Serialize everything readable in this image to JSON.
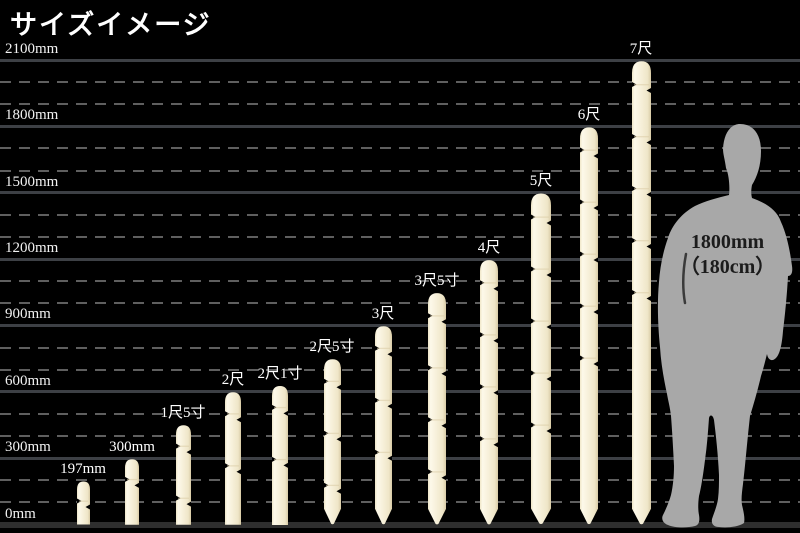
{
  "title": "サイズイメージ",
  "colors": {
    "background": "#000000",
    "grid_solid": "#3d4045",
    "grid_dashed": "#5f5f5f",
    "baseline": "#2e2e2e",
    "text_white": "#ffffff",
    "stake_light": "#fdf9ea",
    "stake_mid": "#f6efd8",
    "stake_dark": "#d9cba6",
    "stake_edge": "#efe6c8",
    "stake_band": "#d8caa4",
    "figure_gray": "#a8a8a8",
    "figure_text": "#1c1c1c"
  },
  "y_axis": {
    "unit": "mm",
    "ticks": [
      {
        "mm": 0,
        "label": "0mm"
      },
      {
        "mm": 300,
        "label": "300mm"
      },
      {
        "mm": 600,
        "label": "600mm"
      },
      {
        "mm": 900,
        "label": "900mm"
      },
      {
        "mm": 1200,
        "label": "1200mm"
      },
      {
        "mm": 1500,
        "label": "1500mm"
      },
      {
        "mm": 1800,
        "label": "1800mm"
      },
      {
        "mm": 2100,
        "label": "2100mm"
      }
    ],
    "minor_step_mm": 100
  },
  "stakes": [
    {
      "label": "197mm",
      "mm": 197,
      "pointed": false
    },
    {
      "label": "300mm",
      "mm": 300,
      "pointed": false
    },
    {
      "label": "1尺5寸",
      "mm": 455,
      "pointed": false
    },
    {
      "label": "2尺",
      "mm": 606,
      "pointed": false
    },
    {
      "label": "2尺1寸",
      "mm": 636,
      "pointed": false
    },
    {
      "label": "2尺5寸",
      "mm": 758,
      "pointed": true
    },
    {
      "label": "3尺",
      "mm": 909,
      "pointed": true
    },
    {
      "label": "3尺5寸",
      "mm": 1061,
      "pointed": true
    },
    {
      "label": "4尺",
      "mm": 1212,
      "pointed": true
    },
    {
      "label": "5尺",
      "mm": 1515,
      "pointed": true
    },
    {
      "label": "6尺",
      "mm": 1818,
      "pointed": true
    },
    {
      "label": "7尺",
      "mm": 2121,
      "pointed": true
    }
  ],
  "figure": {
    "label_line1": "1800mm",
    "label_line2": "（180cm）",
    "height_mm": 1800
  },
  "chart_data": {
    "type": "bar",
    "title": "サイズイメージ",
    "xlabel": "",
    "ylabel": "mm",
    "ylim": [
      0,
      2100
    ],
    "y_ticks": [
      0,
      300,
      600,
      900,
      1200,
      1500,
      1800,
      2100
    ],
    "grid": "dashed every 100mm, solid every 300mm",
    "legend_position": "none",
    "categories": [
      "197mm",
      "300mm",
      "1尺5寸",
      "2尺",
      "2尺1寸",
      "2尺5寸",
      "3尺",
      "3尺5寸",
      "4尺",
      "5尺",
      "6尺",
      "7尺"
    ],
    "values": [
      197,
      300,
      455,
      606,
      636,
      758,
      909,
      1061,
      1212,
      1515,
      1818,
      2121
    ],
    "annotations": [
      "human silhouette for scale: 1800mm（180cm）"
    ]
  }
}
